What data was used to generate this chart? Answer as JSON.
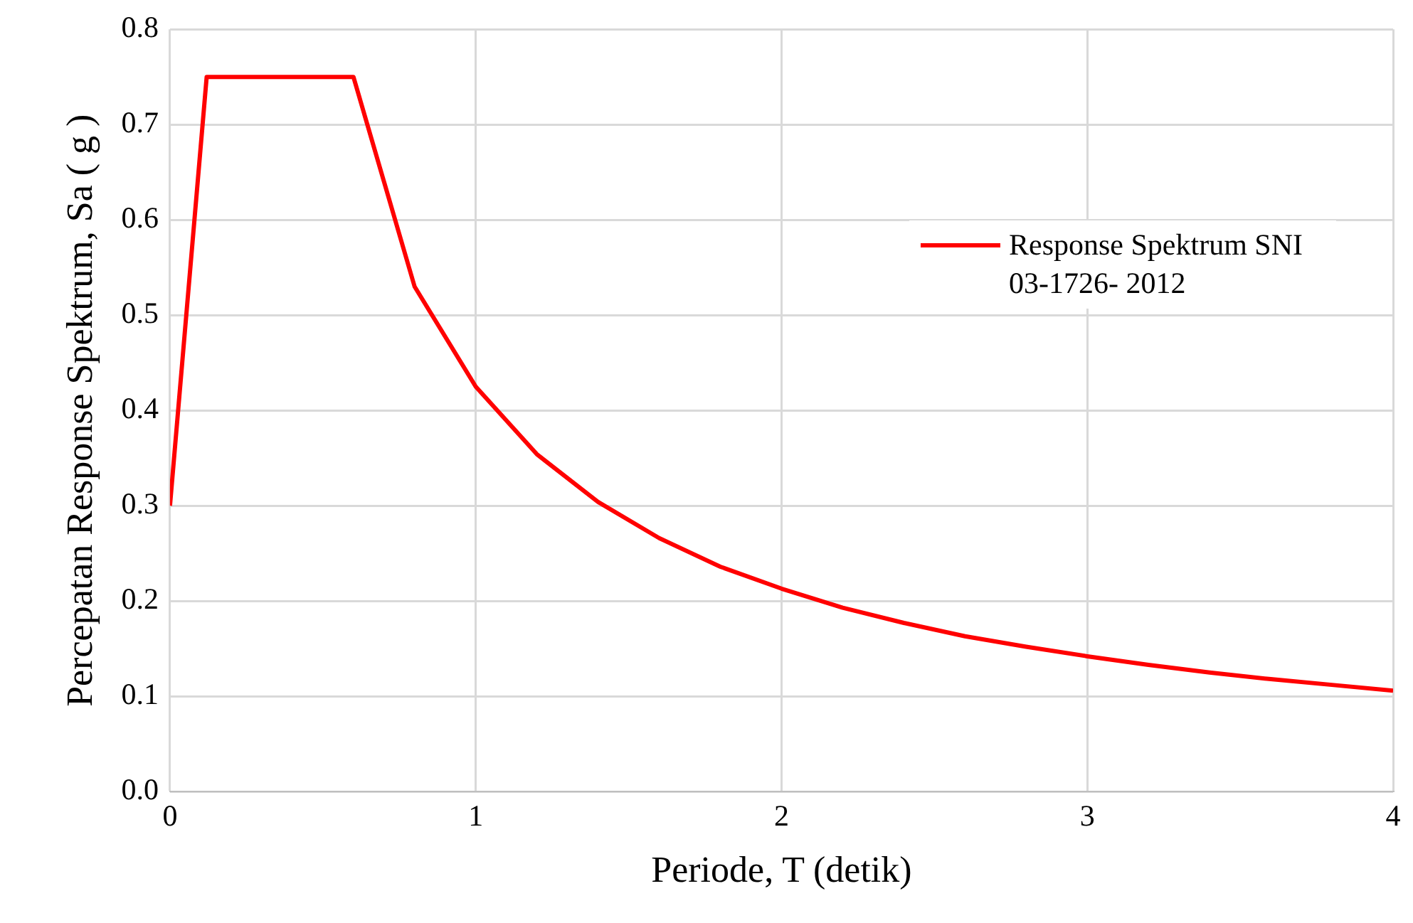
{
  "chart_data": {
    "type": "line",
    "xlabel": "Periode, T (detik)",
    "ylabel": "Percepatan Response Spektrum, Sa ( g )",
    "series": [
      {
        "name": "Response Spektrum SNI 03-1726- 2012",
        "color": "#ff0000",
        "x": [
          0,
          0.12,
          0.6,
          0.8,
          1,
          1.2,
          1.4,
          1.6,
          1.8,
          2,
          2.2,
          2.4,
          2.6,
          2.8,
          3,
          3.2,
          3.4,
          3.6,
          3.8,
          4
        ],
        "values": [
          0.3,
          0.75,
          0.75,
          0.53,
          0.425,
          0.354,
          0.304,
          0.266,
          0.236,
          0.213,
          0.193,
          0.177,
          0.163,
          0.152,
          0.142,
          0.133,
          0.125,
          0.118,
          0.112,
          0.106
        ]
      }
    ],
    "xlim": [
      0,
      4
    ],
    "xticks": [
      0,
      1,
      2,
      3,
      4
    ],
    "ylim": [
      0,
      0.8
    ],
    "yticks": [
      {
        "value": 0,
        "label": "0.0"
      },
      0.1,
      0.2,
      0.3,
      0.4,
      0.5,
      0.6,
      0.7,
      0.8
    ],
    "grid": true,
    "legend": "right",
    "marker": "none",
    "line_style": "solid"
  }
}
